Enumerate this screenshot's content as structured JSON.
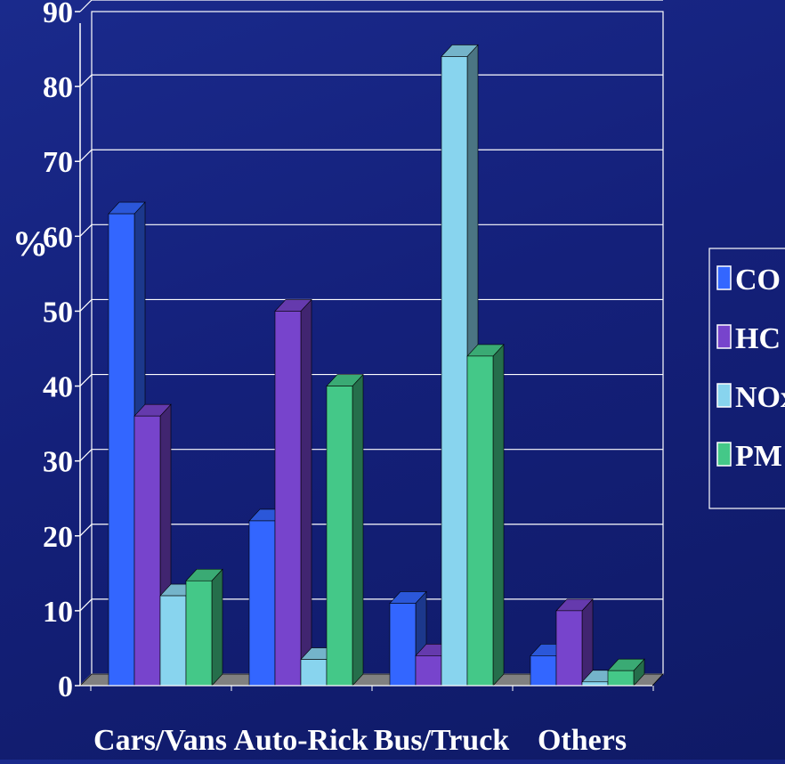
{
  "colors": {
    "CO": "#3366ff",
    "HC": "#7744cc",
    "NOx": "#88d4ee",
    "PM": "#44c888",
    "background": "#14207a",
    "grid": "#ffffff",
    "floor": "#808080"
  },
  "chart_data": {
    "type": "bar",
    "ylabel": "%",
    "xlabel": "",
    "ylim": [
      0,
      90
    ],
    "yticks": [
      0,
      10,
      20,
      30,
      40,
      50,
      60,
      70,
      80,
      90
    ],
    "grid": true,
    "legend_position": "right",
    "categories": [
      "Cars/Vans",
      "Auto-Rick",
      "Bus/Truck",
      "Others"
    ],
    "series": [
      {
        "name": "CO",
        "values": [
          63,
          22,
          11,
          4
        ]
      },
      {
        "name": "HC",
        "values": [
          36,
          50,
          4,
          10
        ]
      },
      {
        "name": "NOx",
        "values": [
          12,
          3.5,
          84,
          0.5
        ]
      },
      {
        "name": "PM",
        "values": [
          14,
          40,
          44,
          2
        ]
      }
    ]
  }
}
